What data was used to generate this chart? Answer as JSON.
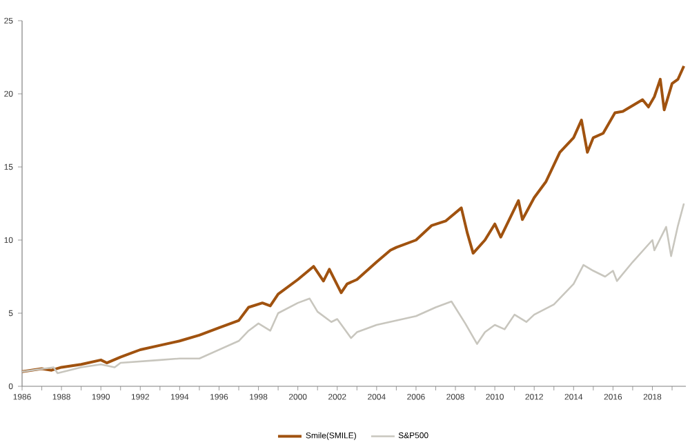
{
  "chart_data": {
    "type": "line",
    "xlim": [
      1986,
      2019.7
    ],
    "ylim": [
      0,
      25
    ],
    "xticks": [
      1986,
      {
        "value": 1987,
        "label": null
      },
      1988,
      {
        "value": 1989,
        "label": null
      },
      1990,
      {
        "value": 1991,
        "label": null
      },
      1992,
      {
        "value": 1993,
        "label": null
      },
      1994,
      {
        "value": 1995,
        "label": null
      },
      1996,
      {
        "value": 1997,
        "label": null
      },
      1998,
      {
        "value": 1999,
        "label": null
      },
      2000,
      {
        "value": 2001,
        "label": null
      },
      2002,
      {
        "value": 2003,
        "label": null
      },
      2004,
      {
        "value": 2005,
        "label": null
      },
      2006,
      {
        "value": 2007,
        "label": null
      },
      2008,
      {
        "value": 2009,
        "label": null
      },
      2010,
      {
        "value": 2011,
        "label": null
      },
      2012,
      {
        "value": 2013,
        "label": null
      },
      2014,
      {
        "value": 2015,
        "label": null
      },
      2016,
      {
        "value": 2017,
        "label": null
      },
      2018,
      {
        "value": 2019,
        "label": null
      }
    ],
    "yticks": [
      0,
      5,
      10,
      15,
      20,
      25
    ],
    "grid": false,
    "legend": "bottom",
    "marker": "none",
    "line_style": "solid",
    "series": [
      {
        "name": "Smile(SMILE)",
        "color": "#a0520f",
        "x": [
          1986,
          1987,
          1987.5,
          1988,
          1989,
          1990,
          1990.3,
          1991,
          1992,
          1993,
          1994,
          1995,
          1996,
          1997,
          1997.5,
          1998.2,
          1998.6,
          1999,
          2000,
          2000.8,
          2001.3,
          2001.6,
          2002.2,
          2002.5,
          2003,
          2004,
          2004.7,
          2005,
          2006,
          2006.8,
          2007.5,
          2008.3,
          2008.6,
          2008.9,
          2009.5,
          2010,
          2010.3,
          2011.2,
          2011.4,
          2012,
          2012.6,
          2013.3,
          2014,
          2014.4,
          2014.7,
          2015,
          2015.5,
          2016.1,
          2016.5,
          2017.5,
          2017.8,
          2018.1,
          2018.4,
          2018.6,
          2019,
          2019.3,
          2019.6
        ],
        "values": [
          1.0,
          1.2,
          1.1,
          1.3,
          1.5,
          1.8,
          1.6,
          2.0,
          2.5,
          2.8,
          3.1,
          3.5,
          4.0,
          4.5,
          5.4,
          5.7,
          5.5,
          6.3,
          7.3,
          8.2,
          7.2,
          8.0,
          6.4,
          7.0,
          7.3,
          8.5,
          9.3,
          9.5,
          10.0,
          11.0,
          11.3,
          12.2,
          10.5,
          9.1,
          10.0,
          11.1,
          10.2,
          12.7,
          11.4,
          12.9,
          14.0,
          16.0,
          17.0,
          18.2,
          16.0,
          17.0,
          17.3,
          18.7,
          18.8,
          19.6,
          19.1,
          19.8,
          21.0,
          18.9,
          20.7,
          21.0,
          21.9
        ]
      },
      {
        "name": "S&P500",
        "color": "#c8c6be",
        "x": [
          1986,
          1987.6,
          1987.8,
          1989,
          1990,
          1990.7,
          1991,
          1992,
          1993,
          1994,
          1995,
          1996,
          1997,
          1997.5,
          1998,
          1998.6,
          1999,
          2000,
          2000.6,
          2001,
          2001.7,
          2002,
          2002.7,
          2003,
          2004,
          2005,
          2006,
          2007,
          2007.8,
          2008.5,
          2009.1,
          2009.5,
          2010,
          2010.5,
          2011,
          2011.6,
          2012,
          2013,
          2014,
          2014.5,
          2015,
          2015.6,
          2016,
          2016.2,
          2017,
          2018,
          2018.1,
          2018.7,
          2018.95,
          2019.3,
          2019.6
        ],
        "values": [
          1.0,
          1.3,
          0.9,
          1.3,
          1.5,
          1.3,
          1.6,
          1.7,
          1.8,
          1.9,
          1.9,
          2.5,
          3.1,
          3.8,
          4.3,
          3.8,
          5.0,
          5.7,
          6.0,
          5.1,
          4.4,
          4.6,
          3.3,
          3.7,
          4.2,
          4.5,
          4.8,
          5.4,
          5.8,
          4.3,
          2.9,
          3.7,
          4.2,
          3.9,
          4.9,
          4.4,
          4.9,
          5.6,
          7.0,
          8.3,
          7.9,
          7.5,
          7.9,
          7.2,
          8.5,
          10.0,
          9.3,
          10.9,
          8.9,
          11.0,
          12.5
        ]
      }
    ]
  }
}
